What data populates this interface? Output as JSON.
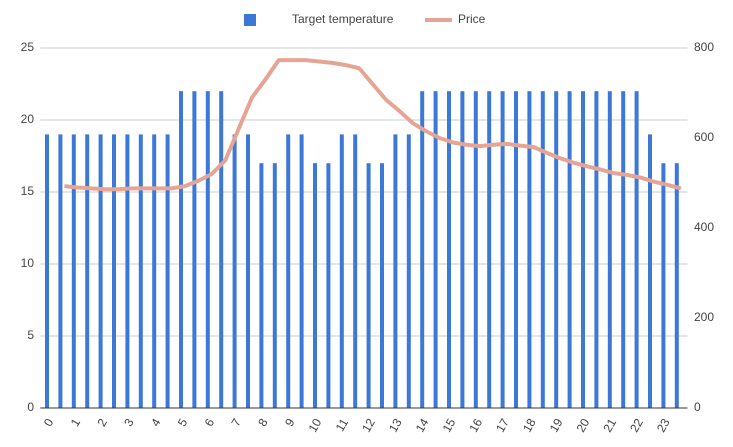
{
  "chart_data": {
    "type": "combo",
    "categories": [
      "0",
      null,
      "1",
      null,
      "2",
      null,
      "3",
      null,
      "4",
      null,
      "5",
      null,
      "6",
      null,
      "7",
      null,
      "8",
      null,
      "9",
      null,
      "10",
      null,
      "11",
      null,
      "12",
      null,
      "13",
      null,
      "14",
      null,
      "15",
      null,
      "16",
      null,
      "17",
      null,
      "18",
      null,
      "19",
      null,
      "20",
      null,
      "21",
      null,
      "22",
      null,
      "23",
      null
    ],
    "series": [
      {
        "name": "Target temperature",
        "type": "bar",
        "color": "#3c78d8",
        "values": [
          19,
          19,
          19,
          19,
          19,
          19,
          19,
          19,
          19,
          19,
          22,
          22,
          22,
          22,
          19,
          19,
          17,
          17,
          19,
          19,
          17,
          17,
          19,
          19,
          17,
          17,
          19,
          19,
          22,
          22,
          22,
          22,
          22,
          22,
          22,
          22,
          22,
          22,
          22,
          22,
          22,
          22,
          22,
          22,
          22,
          19,
          17,
          17
        ]
      },
      {
        "name": "Price",
        "type": "line",
        "axis": "y2",
        "color": "#e6a594",
        "values": [
          null,
          493,
          490,
          488,
          486,
          486,
          488,
          488,
          488,
          488,
          493,
          505,
          520,
          550,
          620,
          690,
          730,
          773,
          773,
          773,
          770,
          767,
          762,
          755,
          720,
          685,
          660,
          633,
          615,
          600,
          590,
          585,
          582,
          585,
          587,
          583,
          580,
          567,
          555,
          545,
          537,
          530,
          522,
          518,
          512,
          503,
          496,
          488
        ]
      }
    ],
    "ylim": [
      0,
      25
    ],
    "yticks": [
      0,
      5,
      10,
      15,
      20,
      25
    ],
    "y2lim": [
      0,
      800
    ],
    "y2ticks": [
      0,
      200,
      400,
      600,
      800
    ],
    "grid": true,
    "legend": "top"
  }
}
